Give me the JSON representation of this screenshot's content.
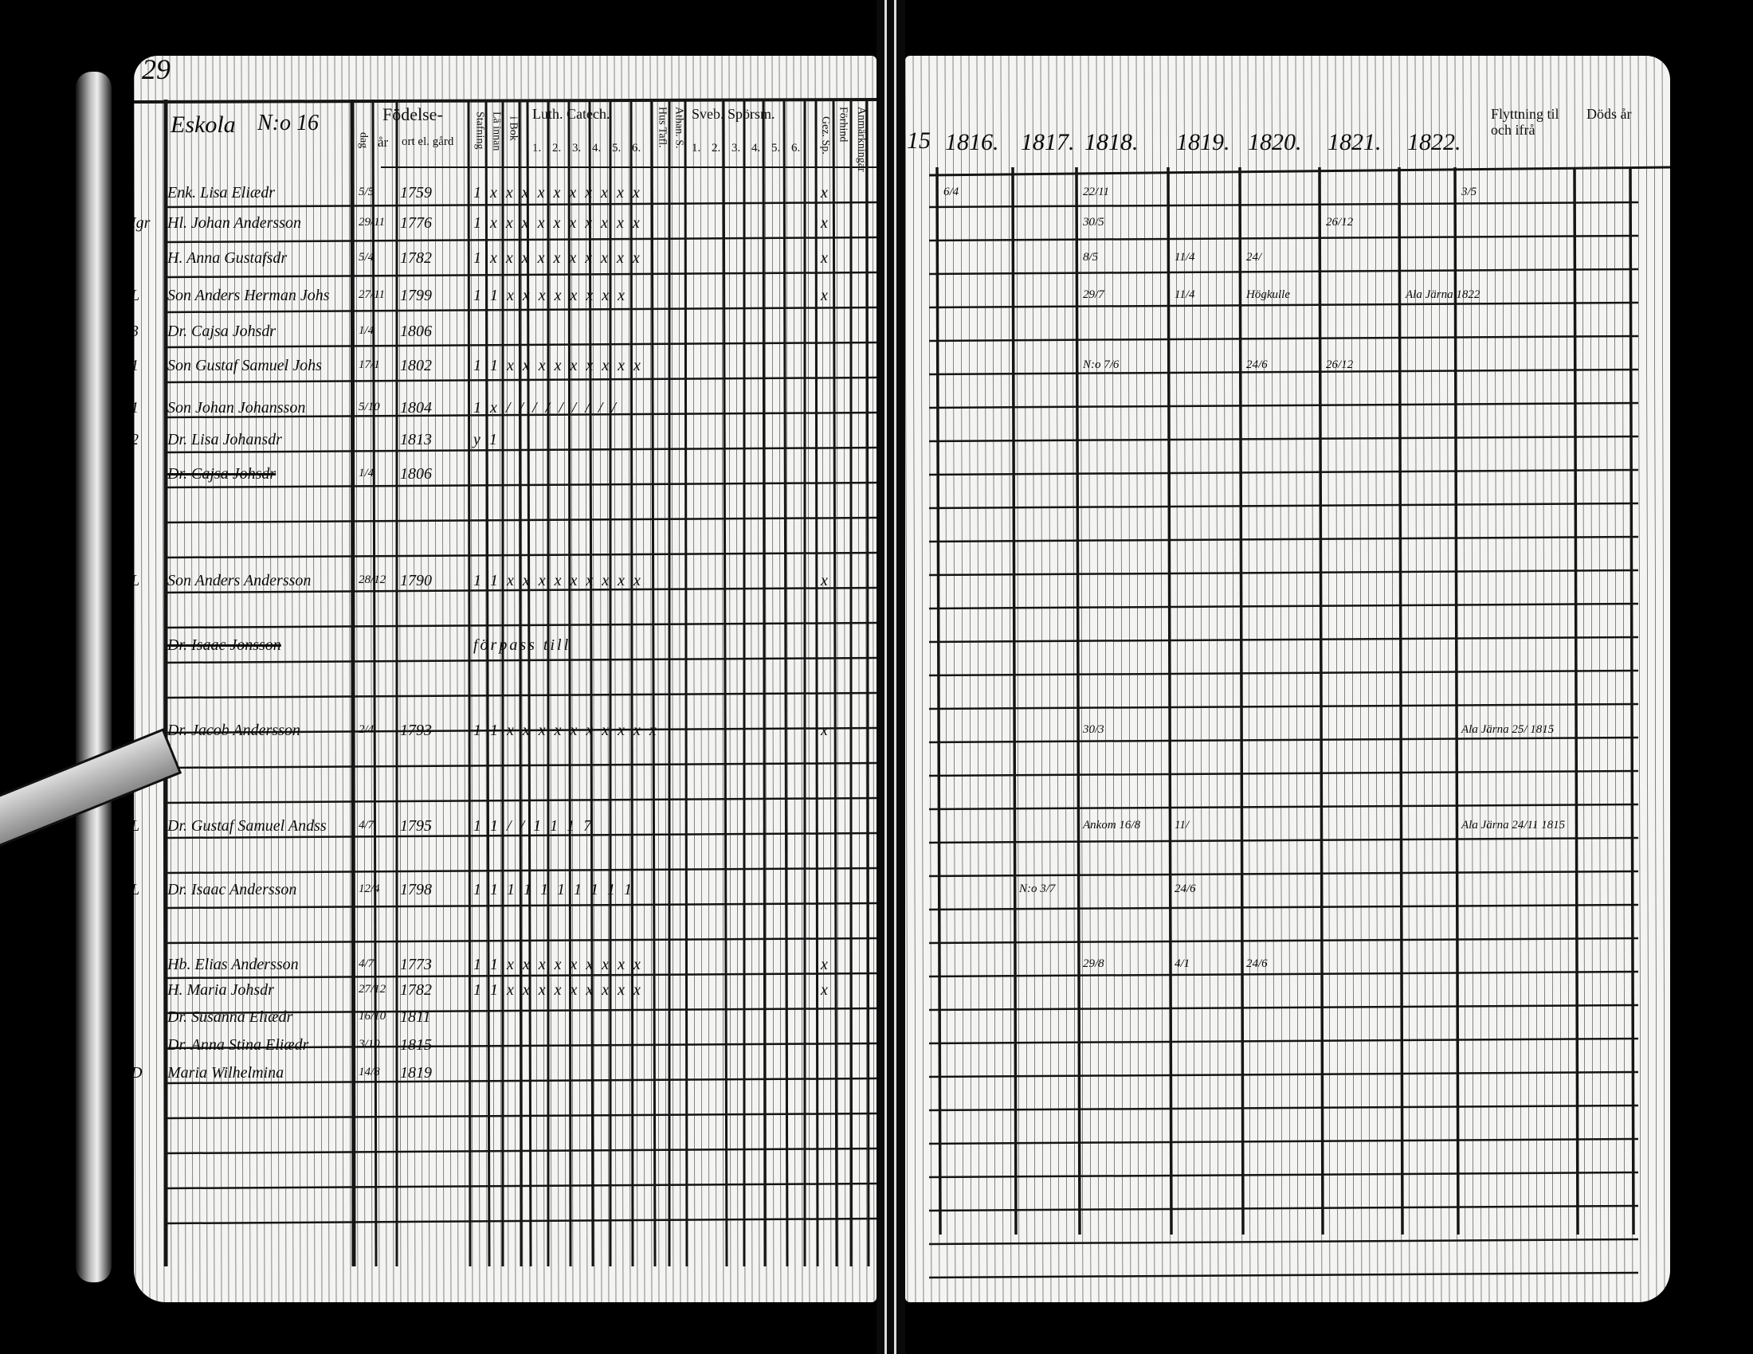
{
  "left_page": {
    "page_number": "29",
    "heading": "Eskola",
    "house_no": "N:o 16",
    "headers": {
      "birth": "Födelse-",
      "day": "dag",
      "year": "år",
      "place": "ort el. gård",
      "spelling": "Stafning",
      "reading": "Lä innan",
      "book": "i Bok",
      "catech": "Luth. Catech.",
      "catech_parts": [
        "1.",
        "2.",
        "3.",
        "4.",
        "5.",
        "6."
      ],
      "hus": "Hus Tafl.",
      "athan": "Athan. S.",
      "sveb": "Sveb. Spörsm.",
      "sveb_parts": [
        "1.",
        "2.",
        "3.",
        "4.",
        "5.",
        "6."
      ],
      "gez": "Gez. Sp.",
      "forhind": "Förhind",
      "anm": "Anmärkningar"
    },
    "rows": [
      {
        "prefix": "",
        "name": "Enk. Lisa Eliædr",
        "day": "5/5",
        "year": "1759",
        "marks": "1 x x x x x x x x x x",
        "gez": "x",
        "struck": false
      },
      {
        "prefix": "Igr",
        "name": "Hl. Johan Andersson",
        "day": "29/11",
        "year": "1776",
        "marks": "1 x x x x x x x x x x",
        "gez": "x",
        "struck": false
      },
      {
        "prefix": "",
        "name": "H. Anna Gustafsdr",
        "day": "5/4",
        "year": "1782",
        "marks": "1 x x x x x x x x x x",
        "gez": "x",
        "struck": false
      },
      {
        "prefix": "L",
        "name": "Son Anders Herman Johs",
        "day": "27/11",
        "year": "1799",
        "marks": "1 1 x x x x x x x x",
        "gez": "x",
        "struck": false
      },
      {
        "prefix": "3",
        "name": "Dr. Cajsa Johsdr",
        "day": "1/4",
        "year": "1806",
        "marks": "",
        "gez": "",
        "struck": false
      },
      {
        "prefix": "1",
        "name": "Son Gustaf Samuel Johs",
        "day": "17/1",
        "year": "1802",
        "marks": "1 1 x x x x x x x x x",
        "gez": "",
        "struck": false
      },
      {
        "prefix": "1",
        "name": "Son Johan Johansson",
        "day": "5/10",
        "year": "1804",
        "marks": "1 x / / / / / / / / /",
        "gez": "",
        "struck": false
      },
      {
        "prefix": "2",
        "name": "Dr. Lisa Johansdr",
        "day": "",
        "year": "1813",
        "marks": "y 1",
        "gez": "",
        "struck": false
      },
      {
        "prefix": "",
        "name": "Dr. Cajsa Johsdr",
        "day": "1/4",
        "year": "1806",
        "marks": "",
        "gez": "",
        "struck": true
      },
      {
        "prefix": "L",
        "name": "Son Anders Andersson",
        "day": "28/12",
        "year": "1790",
        "marks": "1 1 x x x x x x x x x",
        "gez": "x",
        "struck": false
      },
      {
        "prefix": "",
        "name": "Dr. Isaac Jonsson",
        "day": "",
        "year": "",
        "marks": "förpass till",
        "gez": "",
        "struck": true
      },
      {
        "prefix": "",
        "name": "Dr. Jacob Andersson",
        "day": "2/4",
        "year": "1793",
        "marks": "1 1 x x x x x x x x x x",
        "gez": "x",
        "struck": false
      },
      {
        "prefix": "L",
        "name": "Dr. Gustaf Samuel Andss",
        "day": "4/7",
        "year": "1795",
        "marks": "1 1 / / 1 1 1 7",
        "gez": "",
        "struck": false
      },
      {
        "prefix": "L",
        "name": "Dr. Isaac Andersson",
        "day": "12/4",
        "year": "1798",
        "marks": "1 1 1 1 1 1 1 1 1 1",
        "gez": "",
        "struck": false
      },
      {
        "prefix": "",
        "name": "Hb. Elias Andersson",
        "day": "4/7",
        "year": "1773",
        "marks": "1 1 x x x x x x x x x",
        "gez": "x",
        "struck": false
      },
      {
        "prefix": "",
        "name": "H. Maria Johsdr",
        "day": "27/12",
        "year": "1782",
        "marks": "1 1 x x x x x x x x x",
        "gez": "x",
        "struck": false
      },
      {
        "prefix": "",
        "name": "Dr. Susanna Eliædr",
        "day": "16/10",
        "year": "1811",
        "marks": "",
        "gez": "",
        "struck": false
      },
      {
        "prefix": "",
        "name": "Dr. Anna Stina Eliædr",
        "day": "3/10",
        "year": "1815",
        "marks": "",
        "gez": "",
        "struck": false
      },
      {
        "prefix": "D",
        "name": "Maria Wilhelmina",
        "day": "14/8",
        "year": "1819",
        "marks": "",
        "gez": "",
        "struck": false
      }
    ]
  },
  "right_page": {
    "page_number": "15",
    "years": [
      "1816.",
      "1817.",
      "1818.",
      "1819.",
      "1820.",
      "1821.",
      "1822."
    ],
    "moving_header": "Flyttning til och ifrå",
    "death_header": "Döds år",
    "notes": [
      {
        "row": 0,
        "col": 0,
        "text": "6/4"
      },
      {
        "row": 0,
        "col": 2,
        "text": "22/11"
      },
      {
        "row": 0,
        "col": 7,
        "text": "3/5"
      },
      {
        "row": 1,
        "col": 2,
        "text": "30/5"
      },
      {
        "row": 1,
        "col": 5,
        "text": "26/12"
      },
      {
        "row": 2,
        "col": 2,
        "text": "8/5"
      },
      {
        "row": 2,
        "col": 3,
        "text": "11/4"
      },
      {
        "row": 2,
        "col": 4,
        "text": "24/"
      },
      {
        "row": 3,
        "col": 2,
        "text": "29/7"
      },
      {
        "row": 3,
        "col": 3,
        "text": "11/4"
      },
      {
        "row": 3,
        "col": 4,
        "text": "Högkulle"
      },
      {
        "row": 3,
        "col": 6,
        "text": "Ala Järna 1822"
      },
      {
        "row": 5,
        "col": 2,
        "text": "N:o 7/6"
      },
      {
        "row": 5,
        "col": 4,
        "text": "24/6"
      },
      {
        "row": 5,
        "col": 5,
        "text": "26/12"
      },
      {
        "row": 11,
        "col": 2,
        "text": "30/3"
      },
      {
        "row": 11,
        "col": 7,
        "text": "Ala Järna 25/ 1815"
      },
      {
        "row": 12,
        "col": 2,
        "text": "Ankom 16/8"
      },
      {
        "row": 12,
        "col": 3,
        "text": "11/"
      },
      {
        "row": 12,
        "col": 7,
        "text": "Ala Järna 24/11 1815"
      },
      {
        "row": 13,
        "col": 1,
        "text": "N:o 3/7"
      },
      {
        "row": 13,
        "col": 3,
        "text": "24/6"
      },
      {
        "row": 14,
        "col": 2,
        "text": "29/8"
      },
      {
        "row": 14,
        "col": 3,
        "text": "4/1"
      },
      {
        "row": 14,
        "col": 4,
        "text": "24/6"
      }
    ]
  }
}
